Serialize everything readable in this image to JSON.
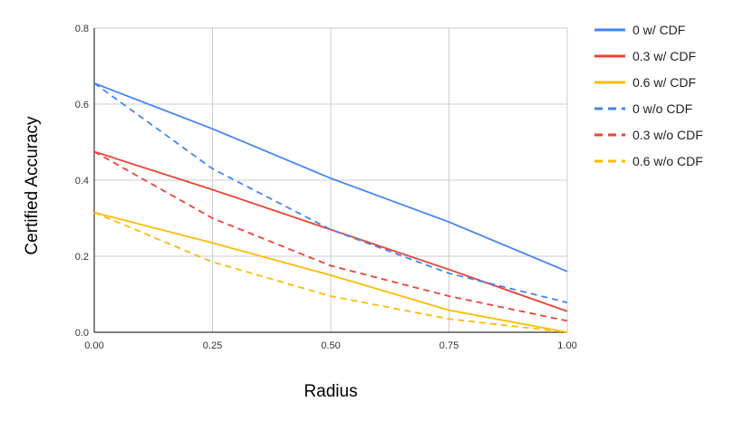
{
  "chart_data": {
    "type": "line",
    "title": "",
    "xlabel": "Radius",
    "ylabel": "Certified Accuracy",
    "x": [
      0.0,
      0.25,
      0.5,
      0.75,
      1.0
    ],
    "x_tick_labels": [
      "0.00",
      "0.25",
      "0.50",
      "0.75",
      "1.00"
    ],
    "y_tick_values": [
      0,
      0.2,
      0.4,
      0.6,
      0.8
    ],
    "y_tick_labels": [
      "0.0",
      "0.2",
      "0.4",
      "0.6",
      "0.8"
    ],
    "xlim": [
      0,
      1
    ],
    "ylim": [
      0,
      0.8
    ],
    "grid": true,
    "legend_position": "right",
    "series": [
      {
        "name": "0 w/ CDF",
        "values": [
          0.655,
          0.535,
          0.405,
          0.29,
          0.16
        ],
        "color": "#4285f4",
        "dash": "solid"
      },
      {
        "name": "0.3 w/ CDF",
        "values": [
          0.475,
          0.375,
          0.27,
          0.165,
          0.055
        ],
        "color": "#ea4335",
        "dash": "solid"
      },
      {
        "name": "0.6 w/ CDF",
        "values": [
          0.315,
          0.235,
          0.15,
          0.058,
          0.0
        ],
        "color": "#fbbc04",
        "dash": "solid"
      },
      {
        "name": "0 w/o CDF",
        "values": [
          0.655,
          0.43,
          0.27,
          0.155,
          0.078
        ],
        "color": "#4285f4",
        "dash": "dashed"
      },
      {
        "name": "0.3 w/o CDF",
        "values": [
          0.475,
          0.3,
          0.175,
          0.095,
          0.03
        ],
        "color": "#ea4335",
        "dash": "dashed"
      },
      {
        "name": "0.6 w/o CDF",
        "values": [
          0.315,
          0.185,
          0.095,
          0.035,
          0.0
        ],
        "color": "#fbbc04",
        "dash": "dashed"
      }
    ]
  }
}
